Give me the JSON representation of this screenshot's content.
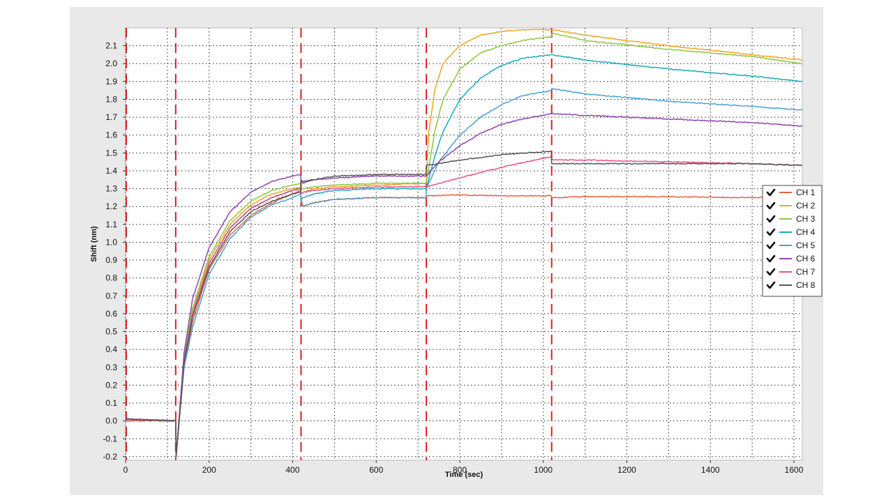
{
  "chart_data": {
    "type": "line",
    "xlabel": "Time (sec)",
    "ylabel": "Shift (nm)",
    "xlim": [
      0,
      1620
    ],
    "ylim": [
      -0.22,
      2.2
    ],
    "x_ticks": [
      0,
      200,
      400,
      600,
      800,
      1000,
      1200,
      1400,
      1600
    ],
    "y_ticks": [
      -0.2,
      -0.1,
      0.0,
      0.1,
      0.2,
      0.3,
      0.4,
      0.5,
      0.6,
      0.7,
      0.8,
      0.9,
      1.0,
      1.1,
      1.2,
      1.3,
      1.4,
      1.5,
      1.6,
      1.7,
      1.8,
      1.9,
      2.0,
      2.1
    ],
    "x_tick_labels": [
      "0",
      "200",
      "400",
      "600",
      "800",
      "1000",
      "1200",
      "1400",
      "1600"
    ],
    "y_tick_labels": [
      "-0.2",
      "-0.1",
      "0.0",
      "0.1",
      "0.2",
      "0.3",
      "0.4",
      "0.5",
      "0.6",
      "0.7",
      "0.8",
      "0.9",
      "1.0",
      "1.1",
      "1.2",
      "1.3",
      "1.4",
      "1.5",
      "1.6",
      "1.7",
      "1.8",
      "1.9",
      "2.0",
      "2.1"
    ],
    "grid": true,
    "legend_position": "right",
    "step_markers": [
      0,
      120,
      420,
      720,
      1020
    ],
    "step_marker_color": "#dd2020",
    "series": [
      {
        "name": "CH 1",
        "color": "#e8603c",
        "checked": true,
        "x": [
          0,
          120,
          121,
          140,
          160,
          200,
          250,
          300,
          350,
          400,
          419,
          420,
          425,
          450,
          500,
          600,
          719,
          720,
          800,
          900,
          1019,
          1020,
          1100,
          1300,
          1500,
          1620
        ],
        "y": [
          0.0,
          0.0,
          -0.2,
          0.3,
          0.55,
          0.85,
          1.04,
          1.15,
          1.22,
          1.27,
          1.29,
          1.24,
          1.2,
          1.22,
          1.24,
          1.25,
          1.25,
          1.26,
          1.265,
          1.26,
          1.26,
          1.25,
          1.255,
          1.255,
          1.25,
          1.25
        ]
      },
      {
        "name": "CH 2",
        "color": "#f0a422",
        "checked": true,
        "x": [
          0,
          120,
          121,
          140,
          160,
          200,
          250,
          300,
          350,
          400,
          419,
          420,
          425,
          450,
          500,
          600,
          719,
          720,
          725,
          740,
          760,
          800,
          850,
          900,
          950,
          1019,
          1020,
          1100,
          1300,
          1500,
          1620
        ],
        "y": [
          0.01,
          0.0,
          -0.2,
          0.35,
          0.62,
          0.9,
          1.1,
          1.21,
          1.27,
          1.3,
          1.31,
          1.27,
          1.28,
          1.3,
          1.31,
          1.32,
          1.33,
          1.33,
          1.6,
          1.85,
          2.0,
          2.1,
          2.16,
          2.18,
          2.19,
          2.19,
          2.19,
          2.16,
          2.1,
          2.05,
          2.02
        ]
      },
      {
        "name": "CH 3",
        "color": "#8cc63f",
        "checked": true,
        "x": [
          0,
          120,
          121,
          140,
          160,
          200,
          250,
          300,
          350,
          400,
          419,
          420,
          425,
          450,
          500,
          600,
          719,
          720,
          740,
          760,
          800,
          850,
          900,
          950,
          1019,
          1020,
          1100,
          1300,
          1500,
          1620
        ],
        "y": [
          0.01,
          0.0,
          -0.2,
          0.35,
          0.63,
          0.92,
          1.12,
          1.23,
          1.29,
          1.32,
          1.33,
          1.29,
          1.3,
          1.31,
          1.32,
          1.33,
          1.33,
          1.33,
          1.62,
          1.8,
          1.97,
          2.06,
          2.1,
          2.13,
          2.15,
          2.17,
          2.13,
          2.08,
          2.04,
          2.0
        ]
      },
      {
        "name": "CH 4",
        "color": "#1aabb8",
        "checked": true,
        "x": [
          0,
          120,
          121,
          140,
          160,
          200,
          250,
          300,
          350,
          400,
          419,
          420,
          425,
          450,
          500,
          600,
          719,
          720,
          740,
          760,
          800,
          850,
          900,
          950,
          1019,
          1020,
          1100,
          1300,
          1500,
          1620
        ],
        "y": [
          0.01,
          0.0,
          -0.2,
          0.34,
          0.6,
          0.88,
          1.08,
          1.19,
          1.25,
          1.29,
          1.3,
          1.24,
          1.25,
          1.27,
          1.29,
          1.3,
          1.3,
          1.3,
          1.48,
          1.62,
          1.8,
          1.92,
          1.99,
          2.03,
          2.05,
          2.05,
          2.02,
          1.97,
          1.93,
          1.9
        ]
      },
      {
        "name": "CH 5",
        "color": "#4a9fd4",
        "checked": true,
        "x": [
          0,
          120,
          121,
          140,
          160,
          200,
          250,
          300,
          350,
          400,
          419,
          420,
          425,
          450,
          500,
          600,
          719,
          720,
          750,
          800,
          850,
          900,
          950,
          1019,
          1020,
          1100,
          1300,
          1500,
          1620
        ],
        "y": [
          0.01,
          0.0,
          -0.2,
          0.3,
          0.52,
          0.82,
          1.02,
          1.14,
          1.21,
          1.25,
          1.27,
          1.22,
          1.2,
          1.22,
          1.24,
          1.25,
          1.25,
          1.3,
          1.45,
          1.6,
          1.7,
          1.77,
          1.82,
          1.85,
          1.86,
          1.83,
          1.79,
          1.76,
          1.74
        ]
      },
      {
        "name": "CH 6",
        "color": "#8e44ad",
        "checked": true,
        "x": [
          0,
          120,
          121,
          140,
          160,
          200,
          250,
          300,
          350,
          400,
          419,
          420,
          425,
          450,
          500,
          600,
          719,
          720,
          750,
          800,
          850,
          900,
          950,
          1019,
          1020,
          1100,
          1300,
          1500,
          1620
        ],
        "y": [
          0.01,
          0.0,
          -0.2,
          0.38,
          0.68,
          0.97,
          1.17,
          1.28,
          1.34,
          1.37,
          1.38,
          1.34,
          1.33,
          1.35,
          1.36,
          1.37,
          1.37,
          1.37,
          1.45,
          1.54,
          1.61,
          1.66,
          1.69,
          1.72,
          1.72,
          1.71,
          1.69,
          1.67,
          1.65
        ]
      },
      {
        "name": "CH 7",
        "color": "#e8508a",
        "checked": true,
        "x": [
          0,
          120,
          121,
          140,
          160,
          200,
          250,
          300,
          350,
          400,
          419,
          420,
          425,
          450,
          500,
          600,
          719,
          720,
          800,
          900,
          1019,
          1020,
          1100,
          1300,
          1500,
          1620
        ],
        "y": [
          0.01,
          0.0,
          -0.2,
          0.33,
          0.6,
          0.88,
          1.08,
          1.19,
          1.25,
          1.29,
          1.3,
          1.27,
          1.28,
          1.29,
          1.3,
          1.31,
          1.31,
          1.31,
          1.36,
          1.42,
          1.48,
          1.46,
          1.46,
          1.45,
          1.44,
          1.43
        ]
      },
      {
        "name": "CH 8",
        "color": "#555555",
        "checked": true,
        "x": [
          0,
          120,
          121,
          140,
          160,
          200,
          250,
          300,
          350,
          400,
          419,
          420,
          425,
          450,
          500,
          600,
          719,
          720,
          800,
          900,
          1019,
          1020,
          1100,
          1300,
          1500,
          1620
        ],
        "y": [
          0.01,
          0.0,
          -0.2,
          0.32,
          0.58,
          0.86,
          1.06,
          1.17,
          1.23,
          1.27,
          1.28,
          1.35,
          1.34,
          1.35,
          1.37,
          1.38,
          1.38,
          1.43,
          1.46,
          1.49,
          1.51,
          1.44,
          1.44,
          1.44,
          1.44,
          1.43
        ]
      }
    ]
  }
}
